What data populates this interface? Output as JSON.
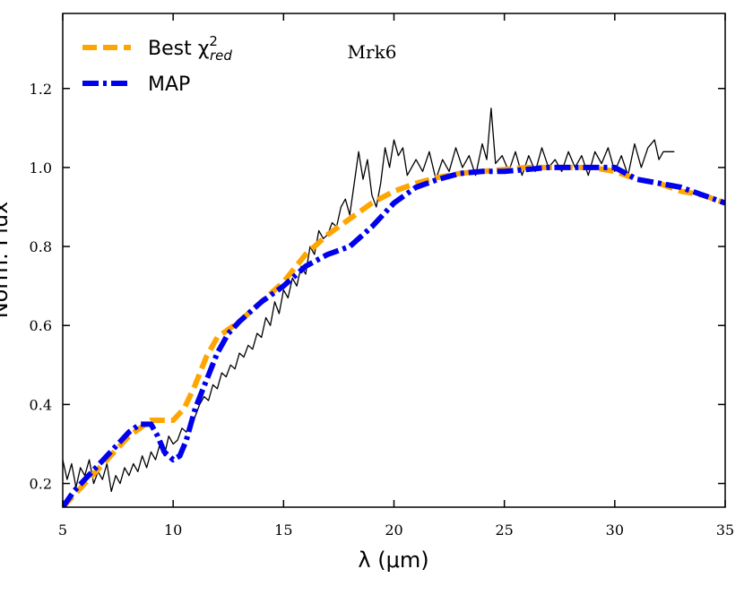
{
  "chart_data": {
    "type": "line",
    "title": "",
    "annotation": "Mrk6",
    "xlabel": "λ (μm)",
    "ylabel": "Norm. Flux",
    "xlim": [
      5,
      35
    ],
    "ylim": [
      0.14,
      1.39
    ],
    "x_ticks": [
      5,
      10,
      15,
      20,
      25,
      30,
      35
    ],
    "x_tick_labels": [
      "5",
      "10",
      "15",
      "20",
      "25",
      "30",
      "35"
    ],
    "y_ticks": [
      0.2,
      0.4,
      0.6,
      0.8,
      1.0,
      1.2
    ],
    "y_tick_labels": [
      "0.2",
      "0.4",
      "0.6",
      "0.8",
      "1.0",
      "1.2"
    ],
    "legend": {
      "placement": "top-left",
      "entries": [
        {
          "label_main": "Best χ",
          "label_sup": "2",
          "label_sub": "red",
          "series": "best"
        },
        {
          "label_main": "MAP",
          "series": "map"
        }
      ]
    },
    "series": [
      {
        "name": "observed",
        "color": "#000000",
        "style": "solid",
        "x": [
          5.0,
          5.2,
          5.4,
          5.6,
          5.8,
          6.0,
          6.2,
          6.4,
          6.6,
          6.8,
          7.0,
          7.2,
          7.4,
          7.6,
          7.8,
          8.0,
          8.2,
          8.4,
          8.6,
          8.8,
          9.0,
          9.2,
          9.4,
          9.6,
          9.8,
          10.0,
          10.2,
          10.4,
          10.6,
          10.8,
          11.0,
          11.2,
          11.4,
          11.6,
          11.8,
          12.0,
          12.2,
          12.4,
          12.6,
          12.8,
          13.0,
          13.2,
          13.4,
          13.6,
          13.8,
          14.0,
          14.2,
          14.4,
          14.6,
          14.8,
          15.0,
          15.2,
          15.4,
          15.6,
          15.8,
          16.0,
          16.2,
          16.4,
          16.6,
          16.8,
          17.0,
          17.2,
          17.4,
          17.6,
          17.8,
          18.0,
          18.2,
          18.4,
          18.6,
          18.8,
          19.0,
          19.2,
          19.4,
          19.6,
          19.8,
          20.0,
          20.2,
          20.4,
          20.6,
          20.8,
          21.0,
          21.3,
          21.6,
          21.9,
          22.2,
          22.5,
          22.8,
          23.1,
          23.4,
          23.7,
          24.0,
          24.2,
          24.4,
          24.6,
          24.9,
          25.2,
          25.5,
          25.8,
          26.1,
          26.4,
          26.7,
          27.0,
          27.3,
          27.6,
          27.9,
          28.2,
          28.5,
          28.8,
          29.1,
          29.4,
          29.7,
          30.0,
          30.3,
          30.6,
          30.9,
          31.2,
          31.5,
          31.8,
          32.0,
          32.2,
          32.4,
          32.7
        ],
        "y": [
          0.26,
          0.21,
          0.25,
          0.19,
          0.24,
          0.22,
          0.26,
          0.2,
          0.23,
          0.21,
          0.25,
          0.18,
          0.22,
          0.2,
          0.24,
          0.22,
          0.25,
          0.23,
          0.27,
          0.24,
          0.28,
          0.26,
          0.3,
          0.27,
          0.32,
          0.3,
          0.31,
          0.34,
          0.33,
          0.36,
          0.37,
          0.4,
          0.42,
          0.41,
          0.45,
          0.44,
          0.48,
          0.47,
          0.5,
          0.49,
          0.53,
          0.52,
          0.55,
          0.54,
          0.58,
          0.57,
          0.62,
          0.6,
          0.66,
          0.63,
          0.69,
          0.67,
          0.72,
          0.7,
          0.75,
          0.73,
          0.8,
          0.78,
          0.84,
          0.82,
          0.83,
          0.86,
          0.85,
          0.9,
          0.92,
          0.88,
          0.96,
          1.04,
          0.97,
          1.02,
          0.93,
          0.9,
          0.96,
          1.05,
          1.0,
          1.07,
          1.03,
          1.05,
          0.98,
          1.0,
          1.02,
          0.99,
          1.04,
          0.97,
          1.02,
          0.99,
          1.05,
          1.0,
          1.03,
          0.98,
          1.06,
          1.02,
          1.15,
          1.01,
          1.03,
          0.99,
          1.04,
          0.98,
          1.03,
          0.99,
          1.05,
          1.0,
          1.02,
          0.99,
          1.04,
          1.0,
          1.03,
          0.98,
          1.04,
          1.01,
          1.05,
          0.99,
          1.03,
          0.98,
          1.06,
          1.0,
          1.05,
          1.07,
          1.02,
          1.04,
          1.04,
          1.04
        ]
      },
      {
        "name": "Best χ²_red",
        "color": "#FFA500",
        "style": "dashed",
        "x": [
          5.0,
          5.5,
          6.0,
          6.5,
          7.0,
          7.5,
          8.0,
          8.5,
          9.0,
          9.5,
          10.0,
          10.5,
          11.0,
          11.5,
          12.0,
          12.5,
          13.0,
          14.0,
          15.0,
          16.0,
          17.0,
          18.0,
          19.0,
          20.0,
          21.0,
          22.0,
          23.0,
          24.0,
          25.0,
          26.0,
          27.0,
          28.0,
          29.0,
          30.0,
          31.0,
          32.0,
          33.0,
          34.0,
          35.0
        ],
        "y": [
          0.14,
          0.17,
          0.2,
          0.23,
          0.26,
          0.29,
          0.32,
          0.34,
          0.36,
          0.36,
          0.36,
          0.39,
          0.45,
          0.52,
          0.57,
          0.59,
          0.61,
          0.66,
          0.71,
          0.78,
          0.83,
          0.87,
          0.91,
          0.94,
          0.96,
          0.975,
          0.985,
          0.99,
          0.995,
          1.0,
          1.0,
          1.0,
          1.0,
          0.99,
          0.97,
          0.96,
          0.94,
          0.93,
          0.91
        ]
      },
      {
        "name": "MAP",
        "color": "#0000EE",
        "style": "dashdot",
        "x": [
          5.0,
          5.5,
          6.0,
          6.5,
          7.0,
          7.5,
          8.0,
          8.5,
          9.0,
          9.3,
          9.6,
          10.0,
          10.3,
          10.6,
          11.0,
          11.5,
          12.0,
          12.5,
          13.0,
          14.0,
          15.0,
          16.0,
          17.0,
          18.0,
          19.0,
          20.0,
          21.0,
          22.0,
          23.0,
          24.0,
          25.0,
          26.0,
          27.0,
          28.0,
          29.0,
          30.0,
          31.0,
          32.0,
          33.0,
          34.0,
          35.0
        ],
        "y": [
          0.14,
          0.18,
          0.21,
          0.24,
          0.27,
          0.3,
          0.33,
          0.35,
          0.35,
          0.32,
          0.28,
          0.26,
          0.27,
          0.31,
          0.39,
          0.46,
          0.53,
          0.58,
          0.61,
          0.66,
          0.7,
          0.75,
          0.78,
          0.8,
          0.85,
          0.91,
          0.95,
          0.97,
          0.985,
          0.99,
          0.99,
          0.995,
          1.0,
          1.0,
          1.0,
          1.0,
          0.97,
          0.96,
          0.95,
          0.93,
          0.91
        ]
      }
    ]
  }
}
